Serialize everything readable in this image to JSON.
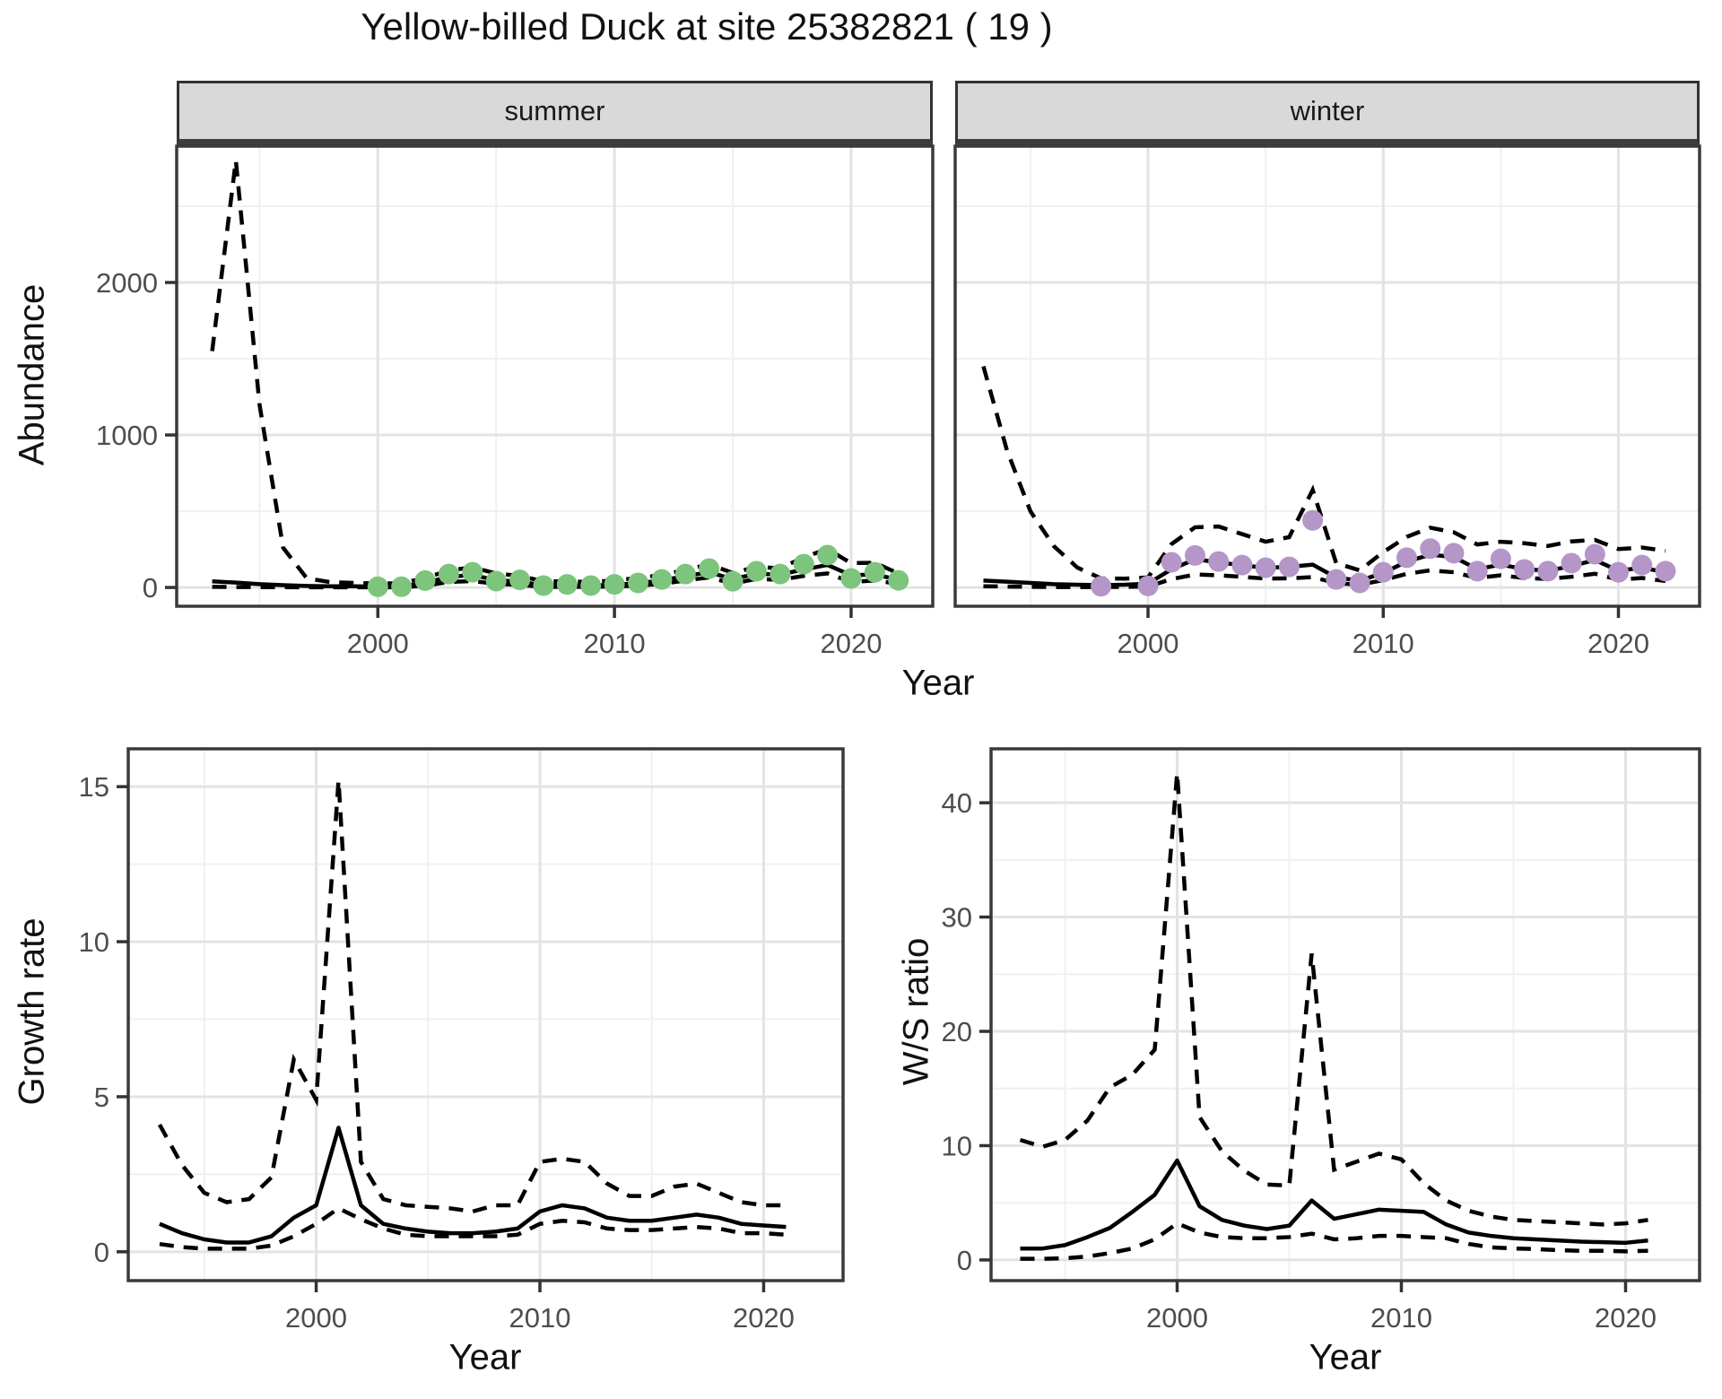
{
  "title": "Yellow-billed Duck at site 25382821 ( 19 )",
  "colors": {
    "summer_points": "#7DC47D",
    "winter_points": "#B596C8",
    "line": "#000000",
    "strip_bg": "#D9D9D9",
    "grid_major": "#E3E3E3",
    "grid_minor": "#F0F0F0",
    "panel_border": "#3A3A3A",
    "tick_mark": "#333333",
    "tick_text": "#4D4D4D"
  },
  "chart_data": [
    {
      "type": "line",
      "facet": "summer",
      "ylabel": "Abundance",
      "xlabel": "Year",
      "xlim": [
        1991.5,
        2023.45
      ],
      "ylim": [
        -123,
        2894
      ],
      "xticks": [
        2000,
        2010,
        2020
      ],
      "yticks": [
        0,
        1000,
        2000
      ],
      "x_minor": [
        1995,
        2005,
        2015
      ],
      "y_minor": [
        500,
        1500,
        2500
      ],
      "years": [
        1993,
        1994,
        1995,
        1996,
        1997,
        1998,
        1999,
        2000,
        2001,
        2002,
        2003,
        2004,
        2005,
        2006,
        2007,
        2008,
        2009,
        2010,
        2011,
        2012,
        2013,
        2014,
        2015,
        2016,
        2017,
        2018,
        2019,
        2020,
        2021,
        2022
      ],
      "median": [
        40,
        32,
        22,
        15,
        10,
        8,
        8,
        6,
        6,
        30,
        70,
        82,
        48,
        38,
        14,
        14,
        12,
        18,
        28,
        46,
        75,
        100,
        55,
        90,
        85,
        118,
        148,
        80,
        86,
        50
      ],
      "lower": [
        4,
        3,
        2,
        2,
        1,
        1,
        1,
        1,
        1,
        12,
        36,
        42,
        24,
        16,
        4,
        4,
        4,
        7,
        12,
        24,
        46,
        66,
        26,
        56,
        50,
        76,
        92,
        36,
        46,
        24
      ],
      "upper": [
        1550,
        2800,
        1200,
        260,
        60,
        35,
        30,
        26,
        28,
        62,
        112,
        132,
        92,
        76,
        40,
        40,
        36,
        46,
        62,
        82,
        115,
        152,
        95,
        135,
        126,
        198,
        252,
        160,
        162,
        92
      ],
      "points": {
        "color": "#7DC47D",
        "years": [
          2000,
          2001,
          2002,
          2003,
          2004,
          2005,
          2006,
          2007,
          2008,
          2009,
          2010,
          2011,
          2012,
          2013,
          2014,
          2015,
          2016,
          2017,
          2018,
          2019,
          2020,
          2021,
          2022
        ],
        "values": [
          5,
          5,
          45,
          88,
          100,
          42,
          50,
          12,
          20,
          12,
          20,
          30,
          53,
          88,
          124,
          41,
          106,
          88,
          153,
          212,
          59,
          100,
          47
        ]
      }
    },
    {
      "type": "line",
      "facet": "winter",
      "ylabel": "Abundance",
      "xlabel": "Year",
      "xlim": [
        1991.8,
        2023.45
      ],
      "ylim": [
        -123,
        2894
      ],
      "xticks": [
        2000,
        2010,
        2020
      ],
      "yticks": [
        0,
        1000,
        2000
      ],
      "x_minor": [
        1995,
        2005,
        2015
      ],
      "y_minor": [
        500,
        1500,
        2500
      ],
      "years": [
        1993,
        1994,
        1995,
        1996,
        1997,
        1998,
        1999,
        2000,
        2001,
        2002,
        2003,
        2004,
        2005,
        2006,
        2007,
        2008,
        2009,
        2010,
        2011,
        2012,
        2013,
        2014,
        2015,
        2016,
        2017,
        2018,
        2019,
        2020,
        2021,
        2022
      ],
      "median": [
        45,
        38,
        30,
        22,
        18,
        15,
        18,
        25,
        120,
        185,
        165,
        145,
        130,
        135,
        150,
        65,
        45,
        95,
        170,
        215,
        200,
        120,
        150,
        120,
        110,
        140,
        180,
        110,
        130,
        100
      ],
      "lower": [
        8,
        6,
        4,
        3,
        3,
        3,
        4,
        6,
        55,
        85,
        80,
        70,
        58,
        60,
        68,
        28,
        18,
        48,
        90,
        112,
        100,
        62,
        80,
        62,
        56,
        70,
        90,
        52,
        62,
        42
      ],
      "upper": [
        1450,
        900,
        500,
        270,
        130,
        60,
        58,
        66,
        285,
        395,
        400,
        350,
        300,
        330,
        640,
        160,
        112,
        232,
        332,
        392,
        362,
        282,
        300,
        290,
        272,
        302,
        312,
        252,
        262,
        240
      ],
      "points": {
        "color": "#B596C8",
        "years": [
          1998,
          2000,
          2001,
          2002,
          2003,
          2004,
          2005,
          2006,
          2007,
          2008,
          2009,
          2010,
          2011,
          2012,
          2013,
          2014,
          2015,
          2016,
          2017,
          2018,
          2019,
          2020,
          2021,
          2022
        ],
        "values": [
          8,
          10,
          165,
          210,
          170,
          147,
          130,
          135,
          440,
          53,
          30,
          100,
          195,
          255,
          225,
          107,
          188,
          118,
          107,
          159,
          218,
          100,
          147,
          107
        ]
      }
    },
    {
      "type": "line",
      "facet": "",
      "ylabel": "Growth rate",
      "xlabel": "Year",
      "xlim": [
        1991.6,
        2023.55
      ],
      "ylim": [
        -0.93,
        16.22
      ],
      "xticks": [
        2000,
        2010,
        2020
      ],
      "yticks": [
        0,
        5,
        10,
        15
      ],
      "x_minor": [
        1995,
        2005,
        2015
      ],
      "y_minor": [
        2.5,
        7.5,
        12.5
      ],
      "years": [
        1993,
        1994,
        1995,
        1996,
        1997,
        1998,
        1999,
        2000,
        2001,
        2002,
        2003,
        2004,
        2005,
        2006,
        2007,
        2008,
        2009,
        2010,
        2011,
        2012,
        2013,
        2014,
        2015,
        2016,
        2017,
        2018,
        2019,
        2020,
        2021
      ],
      "median": [
        0.9,
        0.6,
        0.4,
        0.3,
        0.3,
        0.5,
        1.1,
        1.5,
        4.0,
        1.5,
        0.9,
        0.75,
        0.65,
        0.6,
        0.6,
        0.65,
        0.75,
        1.3,
        1.5,
        1.4,
        1.1,
        1.0,
        1.0,
        1.1,
        1.2,
        1.1,
        0.9,
        0.85,
        0.8
      ],
      "lower": [
        0.25,
        0.15,
        0.1,
        0.1,
        0.1,
        0.2,
        0.5,
        0.9,
        1.4,
        1.05,
        0.75,
        0.55,
        0.5,
        0.5,
        0.5,
        0.5,
        0.55,
        0.9,
        1.0,
        0.95,
        0.75,
        0.7,
        0.7,
        0.75,
        0.8,
        0.75,
        0.6,
        0.6,
        0.55
      ],
      "upper": [
        4.1,
        2.8,
        1.9,
        1.6,
        1.7,
        2.4,
        6.2,
        4.9,
        15.2,
        2.9,
        1.7,
        1.5,
        1.45,
        1.4,
        1.3,
        1.5,
        1.5,
        2.9,
        3.0,
        2.9,
        2.2,
        1.8,
        1.8,
        2.1,
        2.2,
        1.9,
        1.6,
        1.5,
        1.5
      ]
    },
    {
      "type": "line",
      "facet": "",
      "ylabel": "W/S ratio",
      "xlabel": "Year",
      "xlim": [
        1991.7,
        2023.3
      ],
      "ylim": [
        -1.81,
        44.72
      ],
      "xticks": [
        2000,
        2010,
        2020
      ],
      "yticks": [
        0,
        10,
        20,
        30,
        40
      ],
      "x_minor": [
        1995,
        2005,
        2015
      ],
      "y_minor": [
        5,
        15,
        25,
        35
      ],
      "years": [
        1993,
        1994,
        1995,
        1996,
        1997,
        1998,
        1999,
        2000,
        2001,
        2002,
        2003,
        2004,
        2005,
        2006,
        2007,
        2008,
        2009,
        2010,
        2011,
        2012,
        2013,
        2014,
        2015,
        2016,
        2017,
        2018,
        2019,
        2020,
        2021
      ],
      "median": [
        1.0,
        1.0,
        1.3,
        2.0,
        2.8,
        4.2,
        5.7,
        8.7,
        4.7,
        3.5,
        3.0,
        2.7,
        3.0,
        5.2,
        3.6,
        4.0,
        4.4,
        4.3,
        4.2,
        3.1,
        2.4,
        2.1,
        1.9,
        1.8,
        1.7,
        1.6,
        1.55,
        1.5,
        1.7
      ],
      "lower": [
        0.1,
        0.1,
        0.15,
        0.3,
        0.6,
        1.0,
        1.8,
        3.2,
        2.4,
        2.0,
        1.9,
        1.9,
        2.0,
        2.3,
        1.8,
        1.9,
        2.1,
        2.1,
        2.0,
        1.9,
        1.4,
        1.1,
        1.0,
        0.95,
        0.85,
        0.8,
        0.8,
        0.75,
        0.8
      ],
      "upper": [
        10.5,
        9.9,
        10.5,
        12.2,
        15.1,
        16.2,
        18.4,
        42.6,
        12.5,
        9.5,
        7.8,
        6.6,
        6.5,
        26.8,
        7.9,
        8.6,
        9.3,
        8.8,
        6.7,
        5.2,
        4.3,
        3.8,
        3.5,
        3.4,
        3.3,
        3.2,
        3.1,
        3.2,
        3.5
      ]
    }
  ]
}
